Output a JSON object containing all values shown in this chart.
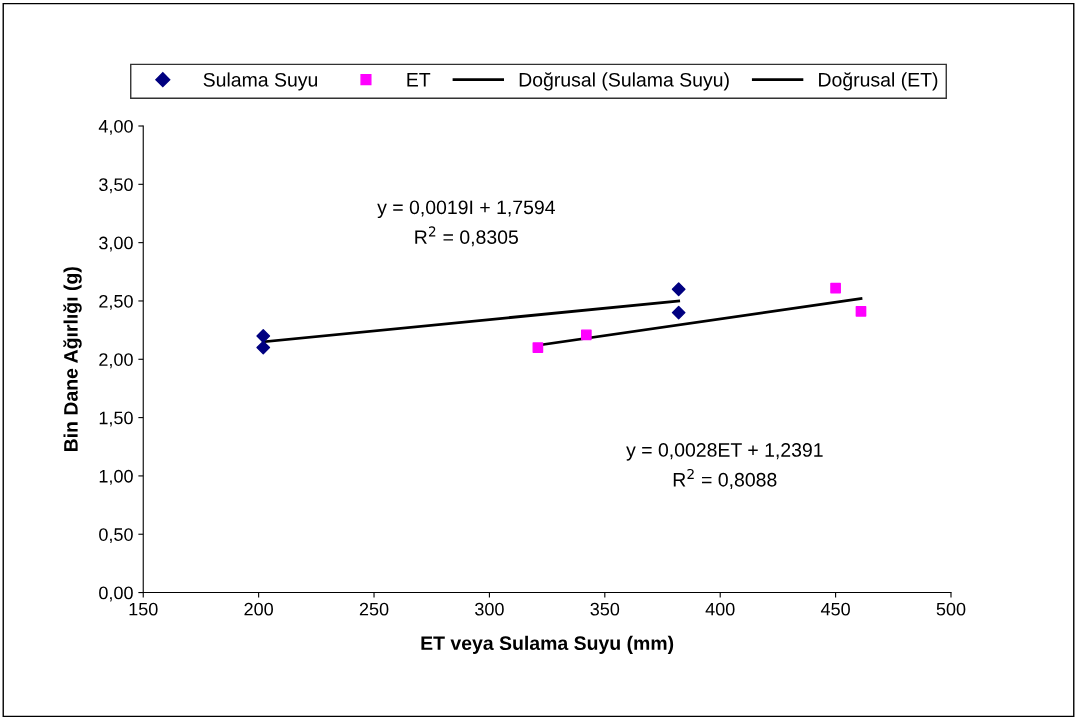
{
  "chart_data": {
    "type": "scatter",
    "xlabel": "ET veya Sulama Suyu (mm)",
    "ylabel": "Bin Dane Ağırlığı (g)",
    "xlim": [
      150,
      500
    ],
    "xticks": [
      150,
      200,
      250,
      300,
      350,
      400,
      450,
      500
    ],
    "ylim": [
      0,
      4
    ],
    "yticks": [
      {
        "value": 0,
        "label": "0,00"
      },
      {
        "value": 0.5,
        "label": "0,50"
      },
      {
        "value": 1,
        "label": "1,00"
      },
      {
        "value": 1.5,
        "label": "1,50"
      },
      {
        "value": 2,
        "label": "2,00"
      },
      {
        "value": 2.5,
        "label": "2,50"
      },
      {
        "value": 3,
        "label": "3,00"
      },
      {
        "value": 3.5,
        "label": "3,50"
      },
      {
        "value": 4,
        "label": "4,00"
      }
    ],
    "grid": false,
    "legend": "top",
    "series": [
      {
        "name": "Sulama Suyu",
        "marker": "diamond",
        "color": "#000080",
        "x": [
          202,
          202,
          382,
          382
        ],
        "values": [
          2.2,
          2.1,
          2.6,
          2.4
        ]
      },
      {
        "name": "ET",
        "marker": "square",
        "color": "#ff00ff",
        "x": [
          321,
          342,
          450,
          461
        ],
        "values": [
          2.1,
          2.21,
          2.61,
          2.41
        ]
      },
      {
        "name": "Doğrusal (Sulama Suyu)",
        "type": "line",
        "marker": "none",
        "color": "#000000",
        "x": [
          202,
          382
        ],
        "values": [
          2.15,
          2.5
        ]
      },
      {
        "name": "Doğrusal (ET)",
        "type": "line",
        "marker": "none",
        "color": "#000000",
        "x": [
          321,
          461
        ],
        "values": [
          2.12,
          2.52
        ]
      }
    ],
    "annotations": [
      "y = 0,0019I + 1,7594\nR$^{2}$ = 0,8305",
      "y = 0,0028ET + 1,2391\nR$^{2}$ = 0,8088"
    ]
  }
}
